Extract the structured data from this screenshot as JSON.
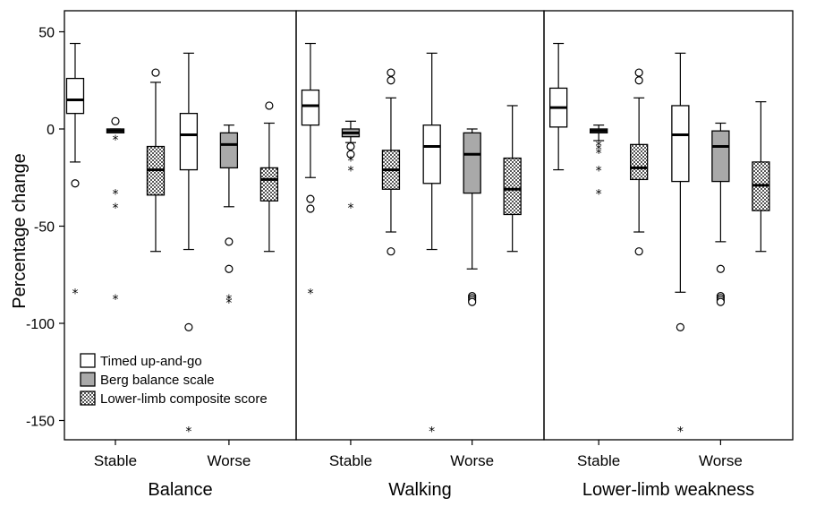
{
  "chart_data": {
    "type": "boxplot",
    "ylabel": "Percentage change",
    "ylim": [
      -160,
      60
    ],
    "yticks": [
      50,
      0,
      -50,
      -100,
      -150
    ],
    "ytick_labels": [
      "50",
      "0",
      "-50",
      "-100",
      "-150"
    ],
    "categories": [
      "Stable",
      "Worse"
    ],
    "legend_position": "bottom-left of first panel",
    "legend": [
      {
        "name": "Timed up-and-go",
        "fill": "white"
      },
      {
        "name": "Berg balance scale",
        "fill": "gray"
      },
      {
        "name": "Lower-limb composite score",
        "fill": "checker"
      }
    ],
    "panels": [
      {
        "title": "Balance",
        "groups": [
          {
            "category": "Stable",
            "boxes": [
              {
                "series": "Timed up-and-go",
                "whisker_low": -17,
                "q1": 8,
                "median": 15,
                "q3": 26,
                "whisker_high": 44,
                "outliers_circle": [
                  -28
                ],
                "outliers_star": [
                  -84
                ]
              },
              {
                "series": "Berg balance scale",
                "whisker_low": -2,
                "q1": -2,
                "median": -1,
                "q3": 0,
                "whisker_high": 0,
                "outliers_circle": [
                  4
                ],
                "outliers_star": [
                  -5,
                  -33,
                  -40,
                  -87
                ]
              },
              {
                "series": "Lower-limb composite score",
                "whisker_low": -63,
                "q1": -34,
                "median": -21,
                "q3": -9,
                "whisker_high": 24,
                "outliers_circle": [
                  29
                ],
                "outliers_star": []
              }
            ]
          },
          {
            "category": "Worse",
            "boxes": [
              {
                "series": "Timed up-and-go",
                "whisker_low": -62,
                "q1": -21,
                "median": -3,
                "q3": 8,
                "whisker_high": 39,
                "outliers_circle": [
                  -102
                ],
                "outliers_star": [
                  -155
                ]
              },
              {
                "series": "Berg balance scale",
                "whisker_low": -40,
                "q1": -20,
                "median": -8,
                "q3": -2,
                "whisker_high": 2,
                "outliers_circle": [
                  -58,
                  -72
                ],
                "outliers_star": [
                  -87,
                  -89
                ]
              },
              {
                "series": "Lower-limb composite score",
                "whisker_low": -63,
                "q1": -37,
                "median": -26,
                "q3": -20,
                "whisker_high": 3,
                "outliers_circle": [
                  12
                ],
                "outliers_star": []
              }
            ]
          }
        ]
      },
      {
        "title": "Walking",
        "groups": [
          {
            "category": "Stable",
            "boxes": [
              {
                "series": "Timed up-and-go",
                "whisker_low": -25,
                "q1": 2,
                "median": 12,
                "q3": 20,
                "whisker_high": 44,
                "outliers_circle": [
                  -36,
                  -41
                ],
                "outliers_star": [
                  -84
                ]
              },
              {
                "series": "Berg balance scale",
                "whisker_low": -7,
                "q1": -4,
                "median": -2,
                "q3": 0,
                "whisker_high": 4,
                "outliers_circle": [
                  -9,
                  -13
                ],
                "outliers_star": [
                  -16,
                  -21,
                  -40
                ]
              },
              {
                "series": "Lower-limb composite score",
                "whisker_low": -53,
                "q1": -31,
                "median": -21,
                "q3": -11,
                "whisker_high": 16,
                "outliers_circle": [
                  25,
                  29,
                  -63
                ],
                "outliers_star": []
              }
            ]
          },
          {
            "category": "Worse",
            "boxes": [
              {
                "series": "Timed up-and-go",
                "whisker_low": -62,
                "q1": -28,
                "median": -9,
                "q3": 2,
                "whisker_high": 39,
                "outliers_circle": [],
                "outliers_star": [
                  -155
                ]
              },
              {
                "series": "Berg balance scale",
                "whisker_low": -72,
                "q1": -33,
                "median": -13,
                "q3": -2,
                "whisker_high": 0,
                "outliers_circle": [
                  -86,
                  -87,
                  -88,
                  -89
                ],
                "outliers_star": []
              },
              {
                "series": "Lower-limb composite score",
                "whisker_low": -63,
                "q1": -44,
                "median": -31,
                "q3": -15,
                "whisker_high": 12,
                "outliers_circle": [],
                "outliers_star": []
              }
            ]
          }
        ]
      },
      {
        "title": "Lower-limb weakness",
        "groups": [
          {
            "category": "Stable",
            "boxes": [
              {
                "series": "Timed up-and-go",
                "whisker_low": -21,
                "q1": 1,
                "median": 11,
                "q3": 21,
                "whisker_high": 44,
                "outliers_circle": [],
                "outliers_star": []
              },
              {
                "series": "Berg balance scale",
                "whisker_low": -6,
                "q1": -2,
                "median": -1,
                "q3": 0,
                "whisker_high": 2,
                "outliers_circle": [],
                "outliers_star": [
                  -8,
                  -10,
                  -12,
                  -21,
                  -33
                ]
              },
              {
                "series": "Lower-limb composite score",
                "whisker_low": -53,
                "q1": -26,
                "median": -20,
                "q3": -8,
                "whisker_high": 16,
                "outliers_circle": [
                  25,
                  29,
                  -63
                ],
                "outliers_star": []
              }
            ]
          },
          {
            "category": "Worse",
            "boxes": [
              {
                "series": "Timed up-and-go",
                "whisker_low": -84,
                "q1": -27,
                "median": -3,
                "q3": 12,
                "whisker_high": 39,
                "outliers_circle": [
                  -102
                ],
                "outliers_star": [
                  -155
                ]
              },
              {
                "series": "Berg balance scale",
                "whisker_low": -58,
                "q1": -27,
                "median": -9,
                "q3": -1,
                "whisker_high": 3,
                "outliers_circle": [
                  -72,
                  -86,
                  -87,
                  -88,
                  -89
                ],
                "outliers_star": []
              },
              {
                "series": "Lower-limb composite score",
                "whisker_low": -63,
                "q1": -42,
                "median": -29,
                "q3": -17,
                "whisker_high": 14,
                "outliers_circle": [],
                "outliers_star": []
              }
            ]
          }
        ]
      }
    ]
  }
}
